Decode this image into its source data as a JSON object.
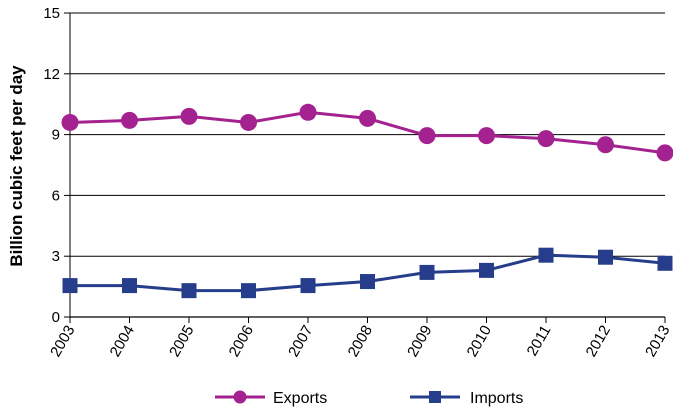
{
  "chart_data": {
    "type": "line",
    "categories": [
      "2003",
      "2004",
      "2005",
      "2006",
      "2007",
      "2008",
      "2009",
      "2010",
      "2011",
      "2012",
      "2013"
    ],
    "series": [
      {
        "name": "Exports",
        "color": "#a3228f",
        "marker": "circle",
        "values": [
          9.6,
          9.7,
          9.9,
          9.6,
          10.1,
          9.8,
          8.95,
          8.95,
          8.8,
          8.5,
          8.1
        ]
      },
      {
        "name": "Imports",
        "color": "#253d8a",
        "marker": "square",
        "values": [
          1.55,
          1.55,
          1.3,
          1.3,
          1.55,
          1.75,
          2.2,
          2.3,
          3.05,
          2.95,
          2.65
        ]
      }
    ],
    "title": "",
    "xlabel": "",
    "ylabel": "Billion cubic feet per day",
    "ylim": [
      0,
      15
    ],
    "yticks": [
      "0",
      "3",
      "6",
      "9",
      "12",
      "15"
    ],
    "grid": true,
    "legend": "bottom"
  }
}
